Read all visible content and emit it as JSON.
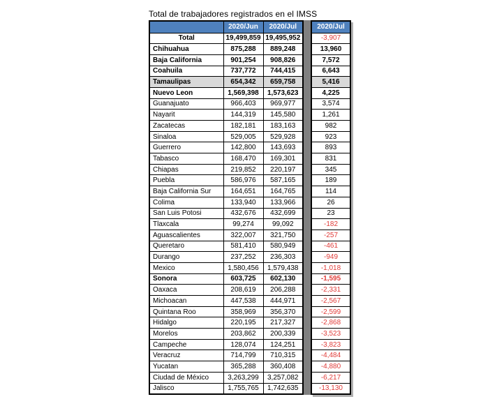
{
  "title": "Total de trabajadores registrados en el IMSS",
  "colors": {
    "header_bg": "#4f81bd",
    "header_text": "#ffffff",
    "negative_text": "#e03b38",
    "shaded_row_bg": "#d9d9d9",
    "separator_strip": "#808080",
    "border": "#000000"
  },
  "table": {
    "columns": {
      "entity": "",
      "jun": "2020/Jun",
      "jul": "2020/Jul",
      "diff": "2020/Jul"
    },
    "rows": [
      {
        "label": "Total",
        "jun": "19,499,859",
        "jul": "19,495,952",
        "diff": "-3,907",
        "bold": true,
        "diff_bold": false,
        "shaded": false,
        "centered": true
      },
      {
        "label": "Chihuahua",
        "jun": "875,288",
        "jul": "889,248",
        "diff": "13,960",
        "bold": true,
        "diff_bold": true,
        "shaded": false,
        "centered": false
      },
      {
        "label": "Baja California",
        "jun": "901,254",
        "jul": "908,826",
        "diff": "7,572",
        "bold": true,
        "diff_bold": true,
        "shaded": false,
        "centered": false
      },
      {
        "label": "Coahuila",
        "jun": "737,772",
        "jul": "744,415",
        "diff": "6,643",
        "bold": true,
        "diff_bold": true,
        "shaded": false,
        "centered": false
      },
      {
        "label": "Tamaulipas",
        "jun": "654,342",
        "jul": "659,758",
        "diff": "5,416",
        "bold": true,
        "diff_bold": true,
        "shaded": true,
        "centered": false
      },
      {
        "label": "Nuevo Leon",
        "jun": "1,569,398",
        "jul": "1,573,623",
        "diff": "4,225",
        "bold": true,
        "diff_bold": true,
        "shaded": false,
        "centered": false
      },
      {
        "label": "Guanajuato",
        "jun": "966,403",
        "jul": "969,977",
        "diff": "3,574",
        "bold": false,
        "diff_bold": false,
        "shaded": false,
        "centered": false
      },
      {
        "label": "Nayarit",
        "jun": "144,319",
        "jul": "145,580",
        "diff": "1,261",
        "bold": false,
        "diff_bold": false,
        "shaded": false,
        "centered": false
      },
      {
        "label": "Zacatecas",
        "jun": "182,181",
        "jul": "183,163",
        "diff": "982",
        "bold": false,
        "diff_bold": false,
        "shaded": false,
        "centered": false
      },
      {
        "label": "Sinaloa",
        "jun": "529,005",
        "jul": "529,928",
        "diff": "923",
        "bold": false,
        "diff_bold": false,
        "shaded": false,
        "centered": false
      },
      {
        "label": "Guerrero",
        "jun": "142,800",
        "jul": "143,693",
        "diff": "893",
        "bold": false,
        "diff_bold": false,
        "shaded": false,
        "centered": false
      },
      {
        "label": "Tabasco",
        "jun": "168,470",
        "jul": "169,301",
        "diff": "831",
        "bold": false,
        "diff_bold": false,
        "shaded": false,
        "centered": false
      },
      {
        "label": "Chiapas",
        "jun": "219,852",
        "jul": "220,197",
        "diff": "345",
        "bold": false,
        "diff_bold": false,
        "shaded": false,
        "centered": false
      },
      {
        "label": "Puebla",
        "jun": "586,976",
        "jul": "587,165",
        "diff": "189",
        "bold": false,
        "diff_bold": false,
        "shaded": false,
        "centered": false
      },
      {
        "label": "Baja California Sur",
        "jun": "164,651",
        "jul": "164,765",
        "diff": "114",
        "bold": false,
        "diff_bold": false,
        "shaded": false,
        "centered": false
      },
      {
        "label": "Colima",
        "jun": "133,940",
        "jul": "133,966",
        "diff": "26",
        "bold": false,
        "diff_bold": false,
        "shaded": false,
        "centered": false
      },
      {
        "label": "San Luis Potosi",
        "jun": "432,676",
        "jul": "432,699",
        "diff": "23",
        "bold": false,
        "diff_bold": false,
        "shaded": false,
        "centered": false
      },
      {
        "label": "Tlaxcala",
        "jun": "99,274",
        "jul": "99,092",
        "diff": "-182",
        "bold": false,
        "diff_bold": false,
        "shaded": false,
        "centered": false
      },
      {
        "label": "Aguascalientes",
        "jun": "322,007",
        "jul": "321,750",
        "diff": "-257",
        "bold": false,
        "diff_bold": false,
        "shaded": false,
        "centered": false
      },
      {
        "label": "Queretaro",
        "jun": "581,410",
        "jul": "580,949",
        "diff": "-461",
        "bold": false,
        "diff_bold": false,
        "shaded": false,
        "centered": false
      },
      {
        "label": "Durango",
        "jun": "237,252",
        "jul": "236,303",
        "diff": "-949",
        "bold": false,
        "diff_bold": false,
        "shaded": false,
        "centered": false
      },
      {
        "label": "Mexico",
        "jun": "1,580,456",
        "jul": "1,579,438",
        "diff": "-1,018",
        "bold": false,
        "diff_bold": false,
        "shaded": false,
        "centered": false
      },
      {
        "label": "Sonora",
        "jun": "603,725",
        "jul": "602,130",
        "diff": "-1,595",
        "bold": true,
        "diff_bold": true,
        "shaded": false,
        "centered": false
      },
      {
        "label": "Oaxaca",
        "jun": "208,619",
        "jul": "206,288",
        "diff": "-2,331",
        "bold": false,
        "diff_bold": false,
        "shaded": false,
        "centered": false
      },
      {
        "label": "Michoacan",
        "jun": "447,538",
        "jul": "444,971",
        "diff": "-2,567",
        "bold": false,
        "diff_bold": false,
        "shaded": false,
        "centered": false
      },
      {
        "label": "Quintana Roo",
        "jun": "358,969",
        "jul": "356,370",
        "diff": "-2,599",
        "bold": false,
        "diff_bold": false,
        "shaded": false,
        "centered": false
      },
      {
        "label": "Hidalgo",
        "jun": "220,195",
        "jul": "217,327",
        "diff": "-2,868",
        "bold": false,
        "diff_bold": false,
        "shaded": false,
        "centered": false
      },
      {
        "label": "Morelos",
        "jun": "203,862",
        "jul": "200,339",
        "diff": "-3,523",
        "bold": false,
        "diff_bold": false,
        "shaded": false,
        "centered": false
      },
      {
        "label": "Campeche",
        "jun": "128,074",
        "jul": "124,251",
        "diff": "-3,823",
        "bold": false,
        "diff_bold": false,
        "shaded": false,
        "centered": false
      },
      {
        "label": "Veracruz",
        "jun": "714,799",
        "jul": "710,315",
        "diff": "-4,484",
        "bold": false,
        "diff_bold": false,
        "shaded": false,
        "centered": false
      },
      {
        "label": "Yucatan",
        "jun": "365,288",
        "jul": "360,408",
        "diff": "-4,880",
        "bold": false,
        "diff_bold": false,
        "shaded": false,
        "centered": false
      },
      {
        "label": "Ciudad de México",
        "jun": "3,263,299",
        "jul": "3,257,082",
        "diff": "-6,217",
        "bold": false,
        "diff_bold": false,
        "shaded": false,
        "centered": false
      },
      {
        "label": "Jalisco",
        "jun": "1,755,765",
        "jul": "1,742,635",
        "diff": "-13,130",
        "bold": false,
        "diff_bold": false,
        "shaded": false,
        "centered": false
      }
    ]
  }
}
